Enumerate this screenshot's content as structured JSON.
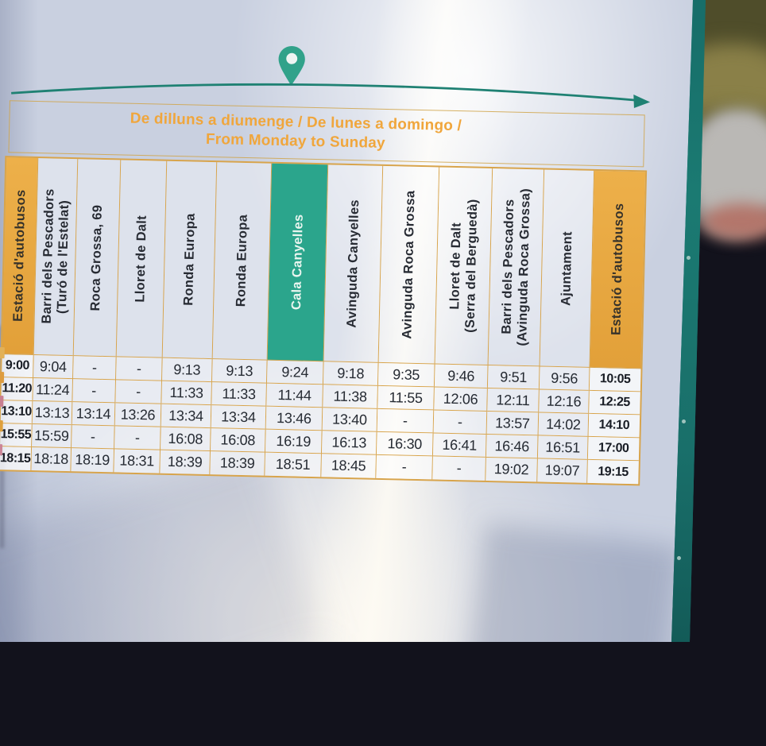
{
  "sign": {
    "service_days_line1": "De dilluns a diumenge / De lunes a domingo /",
    "service_days_line2": "From Monday to Sunday",
    "colors": {
      "teal_accent": "#2ba58c",
      "teal_line": "#1f8173",
      "teal_edge_strip": "#19736d",
      "orange_header": "#e7a73f",
      "grid_border": "#d8a44b",
      "days_text_orange": "#f0a63c",
      "time_text": "#262b33"
    }
  },
  "timetable": {
    "columns": [
      {
        "label": "Estació d'autobusos",
        "style": "orange"
      },
      {
        "label": "Barri dels Pescadors",
        "sub": "(Turó de l'Estelat)"
      },
      {
        "label": "Roca Grossa, 69"
      },
      {
        "label": "Lloret de Dalt"
      },
      {
        "label": "Ronda Europa"
      },
      {
        "label": "Ronda Europa"
      },
      {
        "label": "Cala Canyelles",
        "style": "teal"
      },
      {
        "label": "Avinguda Canyelles"
      },
      {
        "label": "Avinguda Roca Grossa"
      },
      {
        "label": "Lloret de Dalt",
        "sub": "(Serra del Berguedà)"
      },
      {
        "label": "Barri dels Pescadors",
        "sub": "(Avinguda Roca Grossa)"
      },
      {
        "label": "Ajuntament"
      },
      {
        "label": "Estació d'autobusos",
        "style": "orange"
      }
    ],
    "rows": [
      {
        "marker_color": "#e2b158",
        "times": [
          "9:00",
          "9:04",
          "-",
          "-",
          "9:13",
          "9:13",
          "9:24",
          "9:18",
          "9:35",
          "9:46",
          "9:51",
          "9:56",
          "10:05"
        ]
      },
      {
        "marker_color": "#de9c3f",
        "times": [
          "11:20",
          "11:24",
          "-",
          "-",
          "11:33",
          "11:33",
          "11:44",
          "11:38",
          "11:55",
          "12:06",
          "12:11",
          "12:16",
          "12:25"
        ]
      },
      {
        "marker_color": "#c97f90",
        "times": [
          "13:10",
          "13:13",
          "13:14",
          "13:26",
          "13:34",
          "13:34",
          "13:46",
          "13:40",
          "-",
          "-",
          "13:57",
          "14:02",
          "14:10"
        ]
      },
      {
        "marker_color": "#dfa03c",
        "times": [
          "15:55",
          "15:59",
          "-",
          "-",
          "16:08",
          "16:08",
          "16:19",
          "16:13",
          "16:30",
          "16:41",
          "16:46",
          "16:51",
          "17:00"
        ]
      },
      {
        "marker_color": "#cc8597",
        "times": [
          "18:15",
          "18:18",
          "18:19",
          "18:31",
          "18:39",
          "18:39",
          "18:51",
          "18:45",
          "-",
          "-",
          "19:02",
          "19:07",
          "19:15"
        ]
      }
    ]
  }
}
